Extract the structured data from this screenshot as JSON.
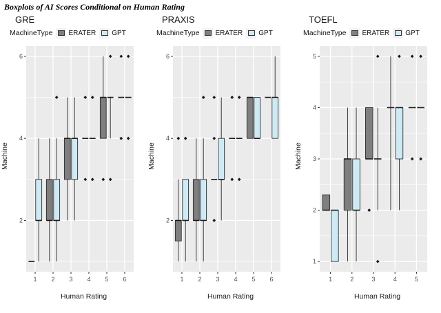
{
  "figure_title": "Boxplots of AI Scores Conditional on Human Rating",
  "legend_title": "MachineType",
  "colors": {
    "panel_bg": "#EBEBEB",
    "grid": "#FFFFFF",
    "box_stroke": "#2B2B2B",
    "tick_text": "#4D4D4D",
    "legend_key_bg": "#F2F2F2",
    "erater": "#7F7F7F",
    "gpt": "#CDEAF5"
  },
  "chart_data": [
    {
      "type": "boxplot",
      "title": "GRE",
      "xlabel": "Human Rating",
      "ylabel": "Machine",
      "categories": [
        "1",
        "2",
        "3",
        "4",
        "5",
        "6"
      ],
      "ylim": [
        0.75,
        6.25
      ],
      "yticks_major": [
        2,
        4,
        6
      ],
      "yticks_minor": [
        1,
        3,
        5
      ],
      "legend_position": "top",
      "grid": true,
      "series": [
        {
          "name": "ERATER",
          "color": "#7F7F7F",
          "boxes": [
            {
              "lo": 1,
              "q1": 1,
              "med": 1,
              "q3": 1,
              "hi": 1,
              "out": []
            },
            {
              "lo": 1,
              "q1": 2,
              "med": 2,
              "q3": 3,
              "hi": 4,
              "out": []
            },
            {
              "lo": 2,
              "q1": 3,
              "med": 4,
              "q3": 4,
              "hi": 5,
              "out": []
            },
            {
              "lo": 4,
              "q1": 4,
              "med": 4,
              "q3": 4,
              "hi": 4,
              "out": [
                5,
                3
              ]
            },
            {
              "lo": 4,
              "q1": 4,
              "med": 5,
              "q3": 5,
              "hi": 6,
              "out": [
                3
              ]
            },
            {
              "lo": 5,
              "q1": 5,
              "med": 5,
              "q3": 5,
              "hi": 5,
              "out": [
                6,
                4
              ]
            }
          ]
        },
        {
          "name": "GPT",
          "color": "#CDEAF5",
          "boxes": [
            {
              "lo": 1,
              "q1": 2,
              "med": 2,
              "q3": 3,
              "hi": 4,
              "out": []
            },
            {
              "lo": 1,
              "q1": 2,
              "med": 2,
              "q3": 3,
              "hi": 4,
              "out": [
                5
              ]
            },
            {
              "lo": 2,
              "q1": 3,
              "med": 4,
              "q3": 4,
              "hi": 5,
              "out": []
            },
            {
              "lo": 4,
              "q1": 4,
              "med": 4,
              "q3": 4,
              "hi": 4,
              "out": [
                5,
                3
              ]
            },
            {
              "lo": 4,
              "q1": 5,
              "med": 5,
              "q3": 5,
              "hi": 5,
              "out": [
                6,
                3
              ]
            },
            {
              "lo": 5,
              "q1": 5,
              "med": 5,
              "q3": 5,
              "hi": 5,
              "out": [
                6,
                4
              ]
            }
          ]
        }
      ]
    },
    {
      "type": "boxplot",
      "title": "PRAXIS",
      "xlabel": "Human Rating",
      "ylabel": "Machine",
      "categories": [
        "1",
        "2",
        "3",
        "4",
        "5",
        "6"
      ],
      "ylim": [
        0.75,
        6.25
      ],
      "yticks_major": [
        2,
        4,
        6
      ],
      "yticks_minor": [
        1,
        3,
        5
      ],
      "legend_position": "top",
      "grid": true,
      "series": [
        {
          "name": "ERATER",
          "color": "#7F7F7F",
          "boxes": [
            {
              "lo": 1,
              "q1": 1.5,
              "med": 2,
              "q3": 2,
              "hi": 3,
              "out": [
                4
              ]
            },
            {
              "lo": 1,
              "q1": 2,
              "med": 2,
              "q3": 3,
              "hi": 4,
              "out": []
            },
            {
              "lo": 3,
              "q1": 3,
              "med": 3,
              "q3": 3,
              "hi": 3,
              "out": [
                2,
                4,
                5
              ]
            },
            {
              "lo": 4,
              "q1": 4,
              "med": 4,
              "q3": 4,
              "hi": 4,
              "out": [
                3,
                5
              ]
            },
            {
              "lo": 4,
              "q1": 4,
              "med": 5,
              "q3": 5,
              "hi": 5,
              "out": []
            },
            {
              "lo": 5,
              "q1": 5,
              "med": 5,
              "q3": 5,
              "hi": 5,
              "out": []
            }
          ]
        },
        {
          "name": "GPT",
          "color": "#CDEAF5",
          "boxes": [
            {
              "lo": 1,
              "q1": 2,
              "med": 2,
              "q3": 3,
              "hi": 3,
              "out": [
                4
              ]
            },
            {
              "lo": 1,
              "q1": 2,
              "med": 2,
              "q3": 3,
              "hi": 4,
              "out": [
                5
              ]
            },
            {
              "lo": 2,
              "q1": 3,
              "med": 3,
              "q3": 4,
              "hi": 5,
              "out": []
            },
            {
              "lo": 4,
              "q1": 4,
              "med": 4,
              "q3": 4,
              "hi": 4,
              "out": [
                3,
                5
              ]
            },
            {
              "lo": 4,
              "q1": 4,
              "med": 4,
              "q3": 5,
              "hi": 5,
              "out": []
            },
            {
              "lo": 4,
              "q1": 4,
              "med": 5,
              "q3": 5,
              "hi": 6,
              "out": []
            }
          ]
        }
      ]
    },
    {
      "type": "boxplot",
      "title": "TOEFL",
      "xlabel": "Human Rating",
      "ylabel": "Machine",
      "categories": [
        "1",
        "2",
        "3",
        "4",
        "5"
      ],
      "ylim": [
        0.8,
        5.2
      ],
      "yticks_major": [
        1,
        2,
        3,
        4,
        5
      ],
      "yticks_minor": [
        1.5,
        2.5,
        3.5,
        4.5
      ],
      "legend_position": "top",
      "grid": true,
      "series": [
        {
          "name": "ERATER",
          "color": "#7F7F7F",
          "boxes": [
            {
              "lo": 2,
              "q1": 2,
              "med": 2,
              "q3": 2.3,
              "hi": 2.3,
              "out": []
            },
            {
              "lo": 1,
              "q1": 2,
              "med": 3,
              "q3": 3,
              "hi": 4,
              "out": []
            },
            {
              "lo": 3,
              "q1": 3,
              "med": 3,
              "q3": 4,
              "hi": 4,
              "out": [
                2
              ]
            },
            {
              "lo": 2,
              "q1": 4,
              "med": 4,
              "q3": 4,
              "hi": 5,
              "out": []
            },
            {
              "lo": 4,
              "q1": 4,
              "med": 4,
              "q3": 4,
              "hi": 4,
              "out": [
                5,
                3
              ]
            }
          ]
        },
        {
          "name": "GPT",
          "color": "#CDEAF5",
          "boxes": [
            {
              "lo": 1,
              "q1": 1,
              "med": 2,
              "q3": 2,
              "hi": 2,
              "out": []
            },
            {
              "lo": 1,
              "q1": 2,
              "med": 2,
              "q3": 3,
              "hi": 4,
              "out": []
            },
            {
              "lo": 2,
              "q1": 3,
              "med": 3,
              "q3": 3,
              "hi": 4,
              "out": [
                1,
                5
              ]
            },
            {
              "lo": 2,
              "q1": 3,
              "med": 4,
              "q3": 4,
              "hi": 4,
              "out": [
                5
              ]
            },
            {
              "lo": 4,
              "q1": 4,
              "med": 4,
              "q3": 4,
              "hi": 4,
              "out": [
                5,
                3
              ]
            }
          ]
        }
      ]
    }
  ]
}
